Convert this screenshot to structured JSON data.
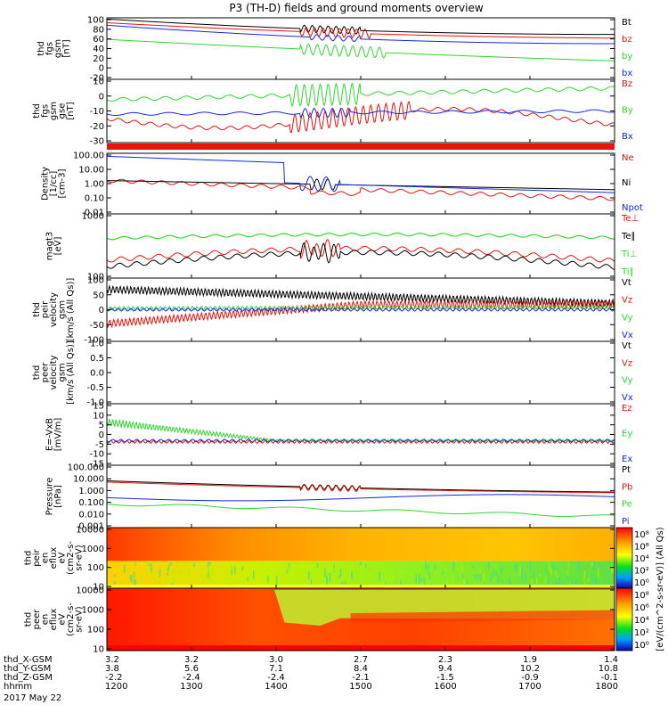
{
  "title": "P3 (TH-D) fields and ground moments overview",
  "date_label": "2017 May 22",
  "colors": {
    "black": "#000000",
    "red": "#e8130e",
    "green": "#2fd82f",
    "blue": "#1427e8"
  },
  "chart_data": [
    {
      "type": "line",
      "id": "fgs-gsm",
      "ylabel": [
        "thd",
        "fgs",
        "gsm",
        "[nT]"
      ],
      "ylim": [
        -20,
        100
      ],
      "yticks": [
        "100",
        "80",
        "60",
        "40",
        "20",
        "0",
        "-20"
      ],
      "legend_placement": "right",
      "series": [
        {
          "name": "Bt",
          "color": "black"
        },
        {
          "name": "bz",
          "color": "red"
        },
        {
          "name": "by",
          "color": "green"
        },
        {
          "name": "bx",
          "color": "blue"
        }
      ]
    },
    {
      "type": "line",
      "id": "fgs-gse",
      "ylabel": [
        "thd",
        "fgs",
        "gsm",
        "gse",
        "[nT]"
      ],
      "ylim": [
        -35,
        10
      ],
      "yticks": [
        "10",
        "0",
        "-10",
        "-20",
        "-30"
      ],
      "legend_placement": "right",
      "series": [
        {
          "name": "Bz",
          "color": "red"
        },
        {
          "name": "By",
          "color": "green"
        },
        {
          "name": "Bx",
          "color": "blue"
        }
      ]
    },
    {
      "type": "line",
      "id": "density",
      "ylabel": [
        "Density",
        "[1/cc]",
        "[cm-3]"
      ],
      "yscale": "log",
      "yticks": [
        "100.00",
        "10.00",
        "1.00",
        "0.10",
        "0.01"
      ],
      "legend_placement": "right",
      "series": [
        {
          "name": "Ne",
          "color": "red"
        },
        {
          "name": "Ni",
          "color": "black"
        },
        {
          "name": "Npot",
          "color": "blue"
        }
      ]
    },
    {
      "type": "line",
      "id": "temperature",
      "ylabel": [
        "magt3",
        "[eV]"
      ],
      "yscale": "log",
      "yticks": [
        "1000",
        "100"
      ],
      "legend_placement": "right",
      "series": [
        {
          "name": "Te⊥",
          "color": "red"
        },
        {
          "name": "Te∥",
          "color": "black"
        },
        {
          "name": "Ti⊥",
          "color": "green"
        },
        {
          "name": "Ti∥",
          "color": "green"
        }
      ]
    },
    {
      "type": "line",
      "id": "peir-velocity",
      "ylabel": [
        "thd",
        "peir",
        "velocity",
        "gsm",
        "[km/s (All Qs)]"
      ],
      "ylim": [
        -100,
        100
      ],
      "yticks": [
        "100",
        "50",
        "0",
        "-50",
        "-100"
      ],
      "legend_placement": "right",
      "series": [
        {
          "name": "Vt",
          "color": "black"
        },
        {
          "name": "Vz",
          "color": "red"
        },
        {
          "name": "Vy",
          "color": "green"
        },
        {
          "name": "Vx",
          "color": "blue"
        }
      ]
    },
    {
      "type": "line",
      "id": "peer-velocity",
      "ylabel": [
        "thd",
        "peer",
        "velocity",
        "gsm",
        "[km/s (All Qs)]"
      ],
      "ylim": [
        -1,
        1
      ],
      "yticks": [
        "1.0",
        "0.5",
        "0.0",
        "-0.5",
        "-1.0"
      ],
      "legend_placement": "right",
      "series": [
        {
          "name": "Vt",
          "color": "black"
        },
        {
          "name": "Vz",
          "color": "red"
        },
        {
          "name": "Vy",
          "color": "green"
        },
        {
          "name": "Vx",
          "color": "blue"
        }
      ]
    },
    {
      "type": "line",
      "id": "efield",
      "ylabel": [
        "E=-VxB",
        "[mV/m]"
      ],
      "ylim": [
        -15,
        15
      ],
      "yticks": [
        "15",
        "10",
        "5",
        "0",
        "-5",
        "-10",
        "-15"
      ],
      "legend_placement": "right",
      "series": [
        {
          "name": "Ez",
          "color": "red"
        },
        {
          "name": "Ey",
          "color": "green"
        },
        {
          "name": "Ex",
          "color": "blue"
        }
      ]
    },
    {
      "type": "line",
      "id": "pressure",
      "ylabel": [
        "Pressure",
        "[nPa]"
      ],
      "yscale": "log",
      "yticks": [
        "100.000",
        "10.000",
        "1.000",
        "0.100",
        "0.010",
        "0.001"
      ],
      "legend_placement": "right",
      "series": [
        {
          "name": "Pt",
          "color": "black"
        },
        {
          "name": "Pb",
          "color": "red"
        },
        {
          "name": "Pe",
          "color": "green"
        },
        {
          "name": "Pi",
          "color": "blue"
        }
      ]
    },
    {
      "type": "heatmap",
      "id": "peir-eflux",
      "ylabel": [
        "thd",
        "peir",
        "en",
        "eflux",
        "eV",
        "(cm2-s-",
        "sr-eV)"
      ],
      "yscale": "log",
      "yticks": [
        "10000",
        "1000",
        "100",
        "10"
      ],
      "colorbar": {
        "ticks": [
          "10⁸",
          "10⁶",
          "10⁴",
          "10²",
          "10⁰"
        ]
      }
    },
    {
      "type": "heatmap",
      "id": "peer-eflux",
      "ylabel": [
        "thd",
        "peer",
        "en",
        "eflux",
        "eV",
        "(cm2-s-",
        "sr-eV)"
      ],
      "yscale": "log",
      "yticks": [
        "10000",
        "1000",
        "100",
        "10"
      ],
      "colorbar": {
        "ticks": [
          "10⁸",
          "10⁶",
          "10⁴",
          "10²",
          "10⁰"
        ]
      }
    }
  ],
  "colorbar_label": "[eV/(cm^2-s-sr-eV)] (All Qs)",
  "ephemeris": {
    "labels": [
      "thd_X-GSM",
      "thd_Y-GSM",
      "thd_Z-GSM",
      "hhmm"
    ],
    "columns": [
      [
        "3.2",
        "3.8",
        "-2.2",
        "1200"
      ],
      [
        "3.2",
        "5.6",
        "-2.4",
        "1300"
      ],
      [
        "3.0",
        "7.1",
        "-2.4",
        "1400"
      ],
      [
        "2.7",
        "8.4",
        "-2.1",
        "1500"
      ],
      [
        "2.3",
        "9.4",
        "-1.5",
        "1600"
      ],
      [
        "1.9",
        "10.2",
        "-0.9",
        "1700"
      ],
      [
        "1.4",
        "10.8",
        "-0.1",
        "1800"
      ]
    ]
  }
}
